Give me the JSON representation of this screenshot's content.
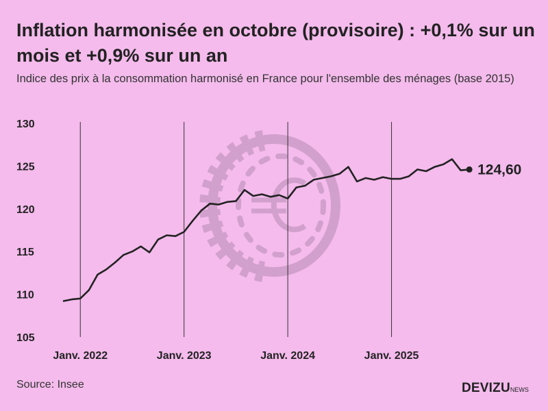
{
  "header": {
    "title": "Inflation harmonisée en octobre (provisoire) : +0,1% sur un mois et +0,9% sur un an",
    "subtitle": "Indice des prix à la consommation harmonisé en France pour l'ensemble des ménages (base 2015)"
  },
  "footer": {
    "source": "Source: Insee",
    "logo_main": "DEVIZU",
    "logo_suffix": "NEWS"
  },
  "chart_data": {
    "type": "line",
    "title": "",
    "xlabel": "",
    "ylabel": "",
    "ylim": [
      105,
      130
    ],
    "yticks": [
      "105",
      "110",
      "115",
      "120",
      "125",
      "130"
    ],
    "xticks": [
      {
        "label": "Janv. 2022",
        "month": "2022-01"
      },
      {
        "label": "Janv. 2023",
        "month": "2023-01"
      },
      {
        "label": "Janv. 2024",
        "month": "2024-01"
      },
      {
        "label": "Janv. 2025",
        "month": "2025-01"
      }
    ],
    "grid": "vertical lines at January",
    "line_color": "#222222",
    "background": "#f4bbec",
    "watermark": "euro-coin-icon",
    "end_label": "124,60",
    "x": [
      "2021-11",
      "2021-12",
      "2022-01",
      "2022-02",
      "2022-03",
      "2022-04",
      "2022-05",
      "2022-06",
      "2022-07",
      "2022-08",
      "2022-09",
      "2022-10",
      "2022-11",
      "2022-12",
      "2023-01",
      "2023-02",
      "2023-03",
      "2023-04",
      "2023-05",
      "2023-06",
      "2023-07",
      "2023-08",
      "2023-09",
      "2023-10",
      "2023-11",
      "2023-12",
      "2024-01",
      "2024-02",
      "2024-03",
      "2024-04",
      "2024-05",
      "2024-06",
      "2024-07",
      "2024-08",
      "2024-09",
      "2024-10",
      "2024-11",
      "2024-12",
      "2025-01",
      "2025-02",
      "2025-03",
      "2025-04",
      "2025-05",
      "2025-06",
      "2025-07",
      "2025-08",
      "2025-09",
      "2025-10"
    ],
    "values": [
      109.2,
      109.4,
      109.5,
      110.5,
      112.3,
      112.9,
      113.7,
      114.6,
      115.0,
      115.6,
      114.9,
      116.4,
      116.9,
      116.8,
      117.3,
      118.6,
      119.8,
      120.6,
      120.5,
      120.8,
      120.9,
      122.2,
      121.5,
      121.7,
      121.4,
      121.6,
      121.2,
      122.5,
      122.7,
      123.4,
      123.6,
      123.8,
      124.1,
      124.9,
      123.2,
      123.6,
      123.4,
      123.7,
      123.5,
      123.5,
      123.8,
      124.6,
      124.4,
      124.9,
      125.2,
      125.8,
      124.5,
      124.6
    ]
  }
}
